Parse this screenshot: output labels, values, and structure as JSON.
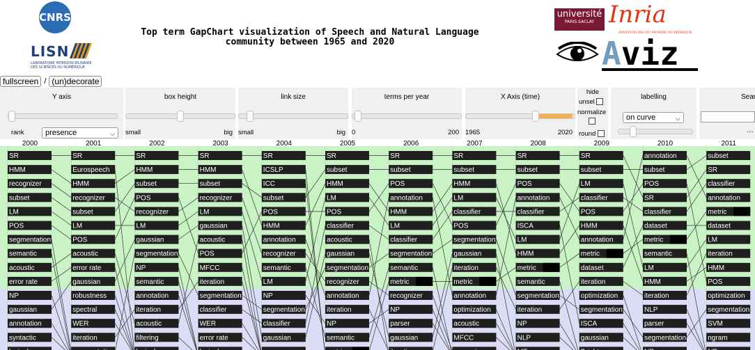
{
  "header": {
    "title": "Top term GapChart visualization of Speech and Natural Language\ncommunity between 1965 and 2020",
    "logos": {
      "cnrs": "CNRS",
      "lisn": "LISN",
      "lisn_sub": "LABORATOIRE INTERDISCIPLINAIRE DES SCIENCES DU NUMÉRIQUE",
      "ups": "université",
      "ups_sub": "PARIS-SACLAY",
      "inria": "Inria",
      "inria_sub": "INVENTEURS DU MONDE NUMÉRIQUE",
      "aviz_a": "A",
      "aviz_rest": "viz"
    }
  },
  "buttons": {
    "fullscreen": "fullscreen",
    "separator": "/",
    "undecorate": "(un)decorate"
  },
  "controls": {
    "y_axis": {
      "label": "Y axis",
      "left": "rank",
      "selected": "presence",
      "slider_value": 0.03
    },
    "box_height": {
      "label": "box height",
      "min": "small",
      "max": "big",
      "slider_value": 0.5
    },
    "link_size": {
      "label": "link size",
      "min": "small",
      "max": "big",
      "slider_value": 0.1
    },
    "terms_per_year": {
      "label": "terms per year",
      "min": "0",
      "max": "200",
      "slider_value": 0.05
    },
    "x_axis": {
      "label": "X Axis (time)",
      "min": "1965",
      "max": "2020",
      "range_start": 0.64,
      "range_end": 0.98
    },
    "hide": {
      "label": "hide",
      "unsel": "unsel",
      "normalize": "normalize",
      "round": "round"
    },
    "labelling": {
      "label": "labelling",
      "selected": "on curve",
      "slider_value": 0.2
    },
    "search": {
      "label": "Sear",
      "placeholder": ""
    }
  },
  "colors": {
    "top_band": "#c9f3c4",
    "bottom_band": "#dcdcf6",
    "box": "#1f1f1f",
    "box_text": "#ffffff",
    "highlight": "#000000",
    "panel_bg": "#f0f0f0",
    "slider_fill": "#f4b04f"
  },
  "chart_data": {
    "type": "gapchart",
    "years": [
      "2000",
      "2001",
      "2002",
      "2003",
      "2004",
      "2005",
      "2006",
      "2007",
      "2008",
      "2009",
      "2010",
      "2011"
    ],
    "columns": [
      {
        "year": "2000",
        "terms": [
          "SR",
          "HMM",
          "recognizer",
          "subset",
          "LM",
          "POS",
          "segmentation",
          "semantic",
          "acoustic",
          "error rate",
          "NP",
          "gaussian",
          "annotation",
          "syntactic",
          "lexical"
        ]
      },
      {
        "year": "2001",
        "terms": [
          "SR",
          "Eurospeech",
          "HMM",
          "recognizer",
          "subset",
          "LM",
          "POS",
          "acoustic",
          "error rate",
          "gaussian",
          "robustness",
          "spectral",
          "WER",
          "iteration",
          "segmentation"
        ]
      },
      {
        "year": "2002",
        "terms": [
          "SR",
          "HMM",
          "subset",
          "POS",
          "recognizer",
          "LM",
          "gaussian",
          "segmentation",
          "NP",
          "semantic",
          "annotation",
          "iteration",
          "acoustic",
          "filtering",
          "lexical"
        ]
      },
      {
        "year": "2003",
        "terms": [
          "SR",
          "HMM",
          "subset",
          "recognizer",
          "LM",
          "gaussian",
          "acoustic",
          "POS",
          "MFCC",
          "iteration",
          "segmentation",
          "classifier",
          "WER",
          "error rate",
          "lexical"
        ]
      },
      {
        "year": "2004",
        "terms": [
          "SR",
          "ICSLP",
          "ICC",
          "subset",
          "POS",
          "HMM",
          "annotation",
          "recognizer",
          "semantic",
          "LM",
          "NP",
          "segmentation",
          "classifier",
          "gaussian",
          "parser"
        ]
      },
      {
        "year": "2005",
        "terms": [
          "SR",
          "subset",
          "HMM",
          "LM",
          "POS",
          "classifier",
          "acoustic",
          "gaussian",
          "segmentation",
          "recognizer",
          "annotation",
          "iteration",
          "NP",
          "semantic",
          "metric"
        ]
      },
      {
        "year": "2006",
        "terms": [
          "SR",
          "subset",
          "POS",
          "annotation",
          "HMM",
          "LM",
          "classifier",
          "segmentation",
          "semantic",
          "metric",
          "recognizer",
          "NP",
          "parser",
          "gaussian",
          "iteration"
        ]
      },
      {
        "year": "2007",
        "terms": [
          "SR",
          "subset",
          "HMM",
          "LM",
          "classifier",
          "POS",
          "segmentation",
          "gaussian",
          "iteration",
          "metric",
          "annotation",
          "optimization",
          "acoustic",
          "MFCC",
          "recognizer"
        ]
      },
      {
        "year": "2008",
        "terms": [
          "SR",
          "subset",
          "POS",
          "annotation",
          "classifier",
          "ISCA",
          "LM",
          "HMM",
          "metric",
          "semantic",
          "segmentation",
          "iteration",
          "NP",
          "NLP",
          "MT"
        ]
      },
      {
        "year": "2009",
        "terms": [
          "SR",
          "subset",
          "LM",
          "classifier",
          "POS",
          "HMM",
          "annotation",
          "metric",
          "dataset",
          "iteration",
          "optimization",
          "segmentation",
          "ISCA",
          "gaussian",
          "Brighton"
        ]
      },
      {
        "year": "2010",
        "terms": [
          "annotation",
          "subset",
          "POS",
          "SR",
          "classifier",
          "dataset",
          "metric",
          "semantic",
          "LM",
          "HMM",
          "iteration",
          "NLP",
          "parser",
          "segmentation",
          "NP"
        ]
      },
      {
        "year": "2011",
        "terms": [
          "subset",
          "SR",
          "classifier",
          "annotation",
          "metric",
          "dataset",
          "LM",
          "iteration",
          "HMM",
          "POS",
          "optimization",
          "segmentation",
          "SVM",
          "ngram",
          "NP"
        ]
      }
    ],
    "highlighted_term": "metric",
    "top_band_rows": 10
  }
}
